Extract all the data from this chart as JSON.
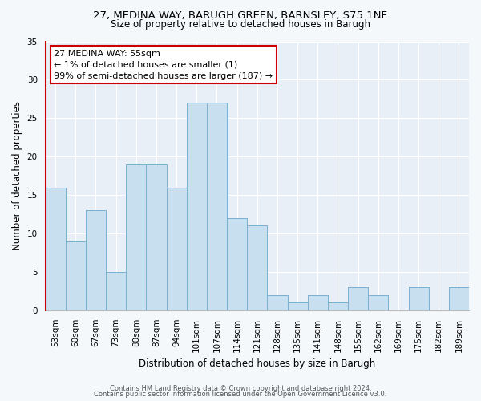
{
  "title1": "27, MEDINA WAY, BARUGH GREEN, BARNSLEY, S75 1NF",
  "title2": "Size of property relative to detached houses in Barugh",
  "xlabel": "Distribution of detached houses by size in Barugh",
  "ylabel": "Number of detached properties",
  "bar_labels": [
    "53sqm",
    "60sqm",
    "67sqm",
    "73sqm",
    "80sqm",
    "87sqm",
    "94sqm",
    "101sqm",
    "107sqm",
    "114sqm",
    "121sqm",
    "128sqm",
    "135sqm",
    "141sqm",
    "148sqm",
    "155sqm",
    "162sqm",
    "169sqm",
    "175sqm",
    "182sqm",
    "189sqm"
  ],
  "bar_values": [
    16,
    9,
    13,
    5,
    19,
    19,
    16,
    27,
    27,
    12,
    11,
    2,
    1,
    2,
    1,
    3,
    2,
    0,
    3,
    0,
    3
  ],
  "bar_color": "#c8dff0",
  "bar_edge_color": "#7ab0d0",
  "annotation_title": "27 MEDINA WAY: 55sqm",
  "annotation_line1": "← 1% of detached houses are smaller (1)",
  "annotation_line2": "99% of semi-detached houses are larger (187) →",
  "annotation_box_facecolor": "#ffffff",
  "annotation_border_color": "#cc0000",
  "ylim": [
    0,
    35
  ],
  "yticks": [
    0,
    5,
    10,
    15,
    20,
    25,
    30,
    35
  ],
  "footer1": "Contains HM Land Registry data © Crown copyright and database right 2024.",
  "footer2": "Contains public sector information licensed under the Open Government Licence v3.0.",
  "bg_color": "#f5f8fb",
  "plot_bg_color": "#e8eff6",
  "grid_color": "#ffffff",
  "red_line_color": "#cc0000",
  "title1_fontsize": 9.5,
  "title2_fontsize": 8.5,
  "axis_label_fontsize": 8.5,
  "tick_fontsize": 7.5,
  "footer_fontsize": 6.0
}
